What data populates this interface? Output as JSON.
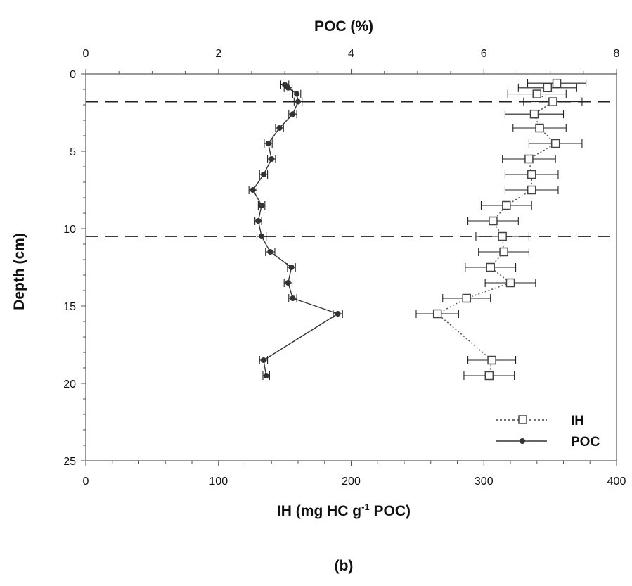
{
  "chart_data": {
    "type": "scatter",
    "caption": "(b)",
    "top_axis": {
      "title": "POC (%)",
      "range": [
        0,
        8
      ],
      "ticks": [
        0,
        2,
        4,
        6,
        8
      ],
      "tick_labels": [
        "0",
        "2",
        "4",
        "6",
        "8"
      ]
    },
    "bottom_axis": {
      "title_main": "IH (mg HC g",
      "title_sup": "-1",
      "title_end": " POC)",
      "range": [
        0,
        400
      ],
      "ticks": [
        0,
        100,
        200,
        300,
        400
      ],
      "tick_labels": [
        "0",
        "100",
        "200",
        "300",
        "400"
      ]
    },
    "y_axis": {
      "title": "Depth (cm)",
      "range": [
        0,
        25
      ],
      "inverted": true,
      "ticks": [
        0,
        5,
        10,
        15,
        20,
        25
      ],
      "tick_labels": [
        "0",
        "5",
        "10",
        "15",
        "20",
        "25"
      ]
    },
    "reference_lines_depth": [
      1.8,
      10.5
    ],
    "series": [
      {
        "name": "IH",
        "axis": "bottom",
        "marker": "open-square",
        "line": "dotted",
        "points": [
          {
            "depth": 0.6,
            "value": 355,
            "err": 22
          },
          {
            "depth": 0.9,
            "value": 348,
            "err": 22
          },
          {
            "depth": 1.3,
            "value": 340,
            "err": 22
          },
          {
            "depth": 1.8,
            "value": 352,
            "err": 22
          },
          {
            "depth": 2.6,
            "value": 338,
            "err": 22
          },
          {
            "depth": 3.5,
            "value": 342,
            "err": 20
          },
          {
            "depth": 4.5,
            "value": 354,
            "err": 20
          },
          {
            "depth": 5.5,
            "value": 334,
            "err": 20
          },
          {
            "depth": 6.5,
            "value": 336,
            "err": 20
          },
          {
            "depth": 7.5,
            "value": 336,
            "err": 20
          },
          {
            "depth": 8.5,
            "value": 317,
            "err": 19
          },
          {
            "depth": 9.5,
            "value": 307,
            "err": 19
          },
          {
            "depth": 10.5,
            "value": 314,
            "err": 20
          },
          {
            "depth": 11.5,
            "value": 315,
            "err": 19
          },
          {
            "depth": 12.5,
            "value": 305,
            "err": 19
          },
          {
            "depth": 13.5,
            "value": 320,
            "err": 19
          },
          {
            "depth": 14.5,
            "value": 287,
            "err": 18
          },
          {
            "depth": 15.5,
            "value": 265,
            "err": 16
          },
          {
            "depth": 18.5,
            "value": 306,
            "err": 18
          },
          {
            "depth": 19.5,
            "value": 304,
            "err": 19
          }
        ]
      },
      {
        "name": "POC",
        "axis": "top",
        "marker": "filled-circle",
        "line": "solid",
        "points": [
          {
            "depth": 0.7,
            "value": 3.0,
            "err": 0.06
          },
          {
            "depth": 0.9,
            "value": 3.05,
            "err": 0.06
          },
          {
            "depth": 1.3,
            "value": 3.18,
            "err": 0.06
          },
          {
            "depth": 1.8,
            "value": 3.2,
            "err": 0.06
          },
          {
            "depth": 2.6,
            "value": 3.12,
            "err": 0.06
          },
          {
            "depth": 3.5,
            "value": 2.92,
            "err": 0.06
          },
          {
            "depth": 4.5,
            "value": 2.75,
            "err": 0.06
          },
          {
            "depth": 5.5,
            "value": 2.8,
            "err": 0.06
          },
          {
            "depth": 6.5,
            "value": 2.68,
            "err": 0.06
          },
          {
            "depth": 7.5,
            "value": 2.52,
            "err": 0.06
          },
          {
            "depth": 8.5,
            "value": 2.65,
            "err": 0.05
          },
          {
            "depth": 9.5,
            "value": 2.6,
            "err": 0.05
          },
          {
            "depth": 10.5,
            "value": 2.65,
            "err": 0.07
          },
          {
            "depth": 11.5,
            "value": 2.78,
            "err": 0.07
          },
          {
            "depth": 12.5,
            "value": 3.1,
            "err": 0.06
          },
          {
            "depth": 13.5,
            "value": 3.05,
            "err": 0.06
          },
          {
            "depth": 14.5,
            "value": 3.12,
            "err": 0.06
          },
          {
            "depth": 15.5,
            "value": 3.8,
            "err": 0.07
          },
          {
            "depth": 18.5,
            "value": 2.68,
            "err": 0.06
          },
          {
            "depth": 19.5,
            "value": 2.72,
            "err": 0.05
          }
        ]
      }
    ],
    "legend": {
      "position": "bottom-right",
      "entries": [
        "IH",
        "POC"
      ]
    },
    "grid": false
  }
}
